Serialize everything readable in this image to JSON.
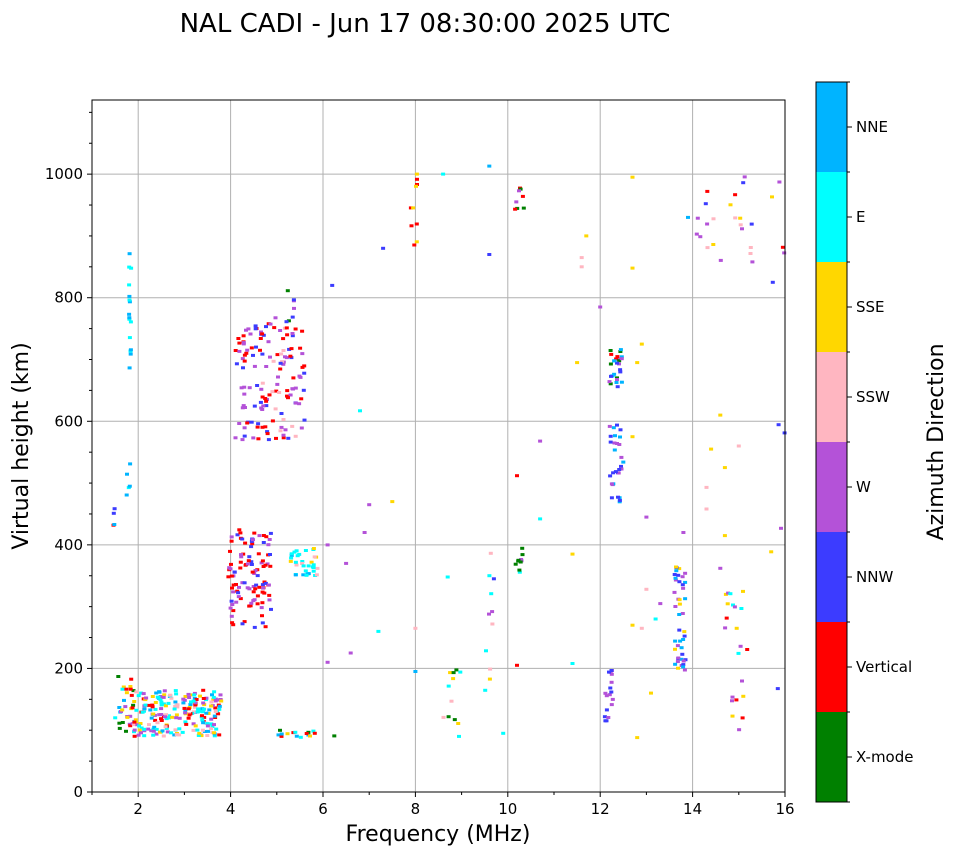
{
  "chart_data": {
    "type": "scatter",
    "title": "NAL CADI - Jun 17 08:30:00 2025 UTC",
    "xlabel": "Frequency (MHz)",
    "ylabel": "Virtual height (km)",
    "xlim": [
      1,
      16
    ],
    "ylim": [
      0,
      1120
    ],
    "xticks": [
      2,
      4,
      6,
      8,
      10,
      12,
      14,
      16
    ],
    "yticks": [
      0,
      200,
      400,
      600,
      800,
      1000
    ],
    "grid": true,
    "colorbar": {
      "title": "Azimuth Direction",
      "categories": [
        {
          "name": "X-mode",
          "color": "#008000"
        },
        {
          "name": "Vertical",
          "color": "#ff0000"
        },
        {
          "name": "NNW",
          "color": "#3c3cff"
        },
        {
          "name": "W",
          "color": "#b452d8"
        },
        {
          "name": "SSW",
          "color": "#ffb6c1"
        },
        {
          "name": "SSE",
          "color": "#ffd700"
        },
        {
          "name": "E",
          "color": "#00ffff"
        },
        {
          "name": "NNE",
          "color": "#00b4ff"
        }
      ]
    },
    "clusters": [
      {
        "f": [
          1.5,
          1.9
        ],
        "h": [
          88,
          200
        ],
        "n": 30,
        "c": [
          "Vertical",
          "E",
          "SSE",
          "W",
          "X-mode",
          "NNE"
        ]
      },
      {
        "f": [
          1.9,
          3.8
        ],
        "h": [
          90,
          165
        ],
        "n": 230,
        "c": [
          "E",
          "W",
          "SSE",
          "Vertical",
          "SSW",
          "NNE",
          "W",
          "E"
        ]
      },
      {
        "f": [
          1.75,
          1.85
        ],
        "h": [
          480,
          540
        ],
        "n": 5,
        "c": [
          "NNE",
          "E"
        ]
      },
      {
        "f": [
          1.8,
          1.85
        ],
        "h": [
          670,
          895
        ],
        "n": 16,
        "c": [
          "NNE",
          "E"
        ]
      },
      {
        "f": [
          1.45,
          1.5
        ],
        "h": [
          425,
          460
        ],
        "n": 4,
        "c": [
          "Vertical",
          "NNE",
          "NNW"
        ]
      },
      {
        "f": [
          3.95,
          4.9
        ],
        "h": [
          265,
          425
        ],
        "n": 110,
        "c": [
          "Vertical",
          "Vertical",
          "W",
          "NNW",
          "Vertical",
          "W"
        ]
      },
      {
        "f": [
          5.3,
          5.9
        ],
        "h": [
          350,
          395
        ],
        "n": 35,
        "c": [
          "E",
          "SSE",
          "SSW",
          "E",
          "NNE"
        ]
      },
      {
        "f": [
          4.1,
          5.6
        ],
        "h": [
          570,
          760
        ],
        "n": 140,
        "c": [
          "Vertical",
          "W",
          "Vertical",
          "SSW",
          "NNW",
          "W"
        ]
      },
      {
        "f": [
          4.9,
          5.4
        ],
        "h": [
          760,
          825
        ],
        "n": 8,
        "c": [
          "W",
          "X-mode",
          "NNW"
        ]
      },
      {
        "f": [
          5.0,
          6.4
        ],
        "h": [
          88,
          100
        ],
        "n": 16,
        "c": [
          "NNE",
          "SSE",
          "Vertical",
          "X-mode",
          "E"
        ]
      },
      {
        "f": [
          8.6,
          9.0
        ],
        "h": [
          88,
          200
        ],
        "n": 12,
        "c": [
          "E",
          "SSW",
          "SSE",
          "X-mode"
        ]
      },
      {
        "f": [
          9.5,
          9.7
        ],
        "h": [
          130,
          430
        ],
        "n": 10,
        "c": [
          "SSE",
          "SSW",
          "W",
          "E"
        ]
      },
      {
        "f": [
          7.9,
          8.05
        ],
        "h": [
          880,
          1010
        ],
        "n": 10,
        "c": [
          "Vertical",
          "SSE"
        ]
      },
      {
        "f": [
          10.15,
          10.35
        ],
        "h": [
          355,
          395
        ],
        "n": 10,
        "c": [
          "X-mode",
          "W",
          "E"
        ]
      },
      {
        "f": [
          10.15,
          10.35
        ],
        "h": [
          935,
          980
        ],
        "n": 8,
        "c": [
          "Vertical",
          "X-mode",
          "W"
        ]
      },
      {
        "f": [
          12.2,
          12.5
        ],
        "h": [
          655,
          725
        ],
        "n": 28,
        "c": [
          "NNE",
          "Vertical",
          "W",
          "NNW",
          "X-mode"
        ]
      },
      {
        "f": [
          12.2,
          12.5
        ],
        "h": [
          465,
          595
        ],
        "n": 30,
        "c": [
          "NNE",
          "NNW",
          "W"
        ]
      },
      {
        "f": [
          12.1,
          12.3
        ],
        "h": [
          115,
          198
        ],
        "n": 18,
        "c": [
          "NNW",
          "W"
        ]
      },
      {
        "f": [
          13.6,
          13.85
        ],
        "h": [
          195,
          370
        ],
        "n": 44,
        "c": [
          "NNW",
          "SSE",
          "NNE",
          "W"
        ]
      },
      {
        "f": [
          14.7,
          15.2
        ],
        "h": [
          90,
          330
        ],
        "n": 22,
        "c": [
          "SSE",
          "Vertical",
          "E",
          "W"
        ]
      },
      {
        "f": [
          14.0,
          15.3
        ],
        "h": [
          840,
          1000
        ],
        "n": 22,
        "c": [
          "SSE",
          "NNW",
          "W",
          "Vertical",
          "SSW"
        ]
      },
      {
        "f": [
          15.6,
          16.0
        ],
        "h": [
          165,
          1000
        ],
        "n": 10,
        "c": [
          "SSE",
          "Vertical",
          "W",
          "NNW"
        ]
      }
    ],
    "points": [
      [
        4.8,
        580,
        "Vertical"
      ],
      [
        10.2,
        512,
        "Vertical"
      ],
      [
        10.2,
        205,
        "Vertical"
      ],
      [
        6.2,
        820,
        "NNW"
      ],
      [
        7.3,
        880,
        "NNW"
      ],
      [
        9.6,
        870,
        "NNW"
      ],
      [
        9.7,
        345,
        "NNW"
      ],
      [
        10.7,
        568,
        "W"
      ],
      [
        12.0,
        785,
        "W"
      ],
      [
        13.0,
        445,
        "W"
      ],
      [
        13.3,
        305,
        "W"
      ],
      [
        13.8,
        420,
        "W"
      ],
      [
        14.6,
        362,
        "W"
      ],
      [
        6.6,
        225,
        "W"
      ],
      [
        6.1,
        210,
        "W"
      ],
      [
        6.1,
        400,
        "W"
      ],
      [
        6.5,
        370,
        "W"
      ],
      [
        7.0,
        465,
        "W"
      ],
      [
        6.9,
        420,
        "W"
      ],
      [
        12.9,
        725,
        "SSE"
      ],
      [
        12.8,
        695,
        "SSE"
      ],
      [
        11.7,
        900,
        "SSE"
      ],
      [
        11.5,
        695,
        "SSE"
      ],
      [
        12.7,
        575,
        "SSE"
      ],
      [
        11.4,
        385,
        "SSE"
      ],
      [
        12.7,
        270,
        "SSE"
      ],
      [
        12.8,
        88,
        "SSE"
      ],
      [
        13.1,
        160,
        "SSE"
      ],
      [
        14.6,
        610,
        "SSE"
      ],
      [
        14.4,
        555,
        "SSE"
      ],
      [
        14.7,
        525,
        "SSE"
      ],
      [
        14.7,
        415,
        "SSE"
      ],
      [
        12.7,
        995,
        "SSE"
      ],
      [
        12.7,
        848,
        "SSE"
      ],
      [
        7.5,
        470,
        "SSE"
      ],
      [
        13.0,
        328,
        "SSW"
      ],
      [
        12.9,
        265,
        "SSW"
      ],
      [
        14.3,
        493,
        "SSW"
      ],
      [
        14.3,
        458,
        "SSW"
      ],
      [
        15.0,
        560,
        "SSW"
      ],
      [
        11.6,
        865,
        "SSW"
      ],
      [
        11.6,
        850,
        "SSW"
      ],
      [
        8.0,
        265,
        "SSW"
      ],
      [
        6.8,
        617,
        "E"
      ],
      [
        7.2,
        260,
        "E"
      ],
      [
        8.7,
        348,
        "E"
      ],
      [
        9.9,
        95,
        "E"
      ],
      [
        10.7,
        442,
        "E"
      ],
      [
        11.4,
        208,
        "E"
      ],
      [
        13.2,
        280,
        "E"
      ],
      [
        8.6,
        1000,
        "E"
      ],
      [
        8.0,
        195,
        "NNE"
      ],
      [
        9.6,
        1013,
        "NNE"
      ],
      [
        13.9,
        930,
        "NNE"
      ]
    ]
  }
}
